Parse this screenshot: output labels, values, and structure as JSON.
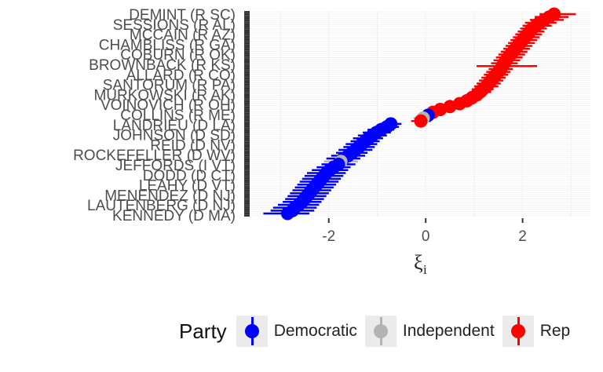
{
  "chart_data": {
    "type": "scatter",
    "title": "",
    "xlabel_main": "ξ",
    "xlabel_sub": "i",
    "ylabel": "",
    "xlim": [
      -3.6,
      3.4
    ],
    "x_ticks": [
      -2,
      0,
      2
    ],
    "x_tick_labels": [
      "-2",
      "0",
      "2"
    ],
    "grid": true,
    "legend_placement": "bottom",
    "y_labels_visible": [
      "DEMINT (R SC)",
      "SESSIONS (R AL)",
      "MCCAIN (R AZ)",
      "CHAMBLISS (R GA)",
      "COBURN (R OK)",
      "BROWNBACK (R KS)",
      "ALLARD (R CO)",
      "SANTORUM (R PA)",
      "MURKOWSKI (R AK)",
      "VOINOVICH (R OH)",
      "COLLINS (R ME)",
      "LANDRIEU (D LA)",
      "JOHNSON (D SD)",
      "REID (D NV)",
      "ROCKEFELLER (D WV)",
      "JEFFORDS (I VT)",
      "DODD (D CT)",
      "LEAHY (D VT)",
      "MENENDEZ (D NJ)",
      "LAUTENBERG (D NJ)",
      "KENNEDY (D MA)"
    ],
    "series": [
      {
        "name": "Democratic",
        "color": "#0000ff",
        "points": [
          [
            -2.85,
            -3.35,
            -2.4
          ],
          [
            -2.75,
            -3.2,
            -2.3
          ],
          [
            -2.7,
            -3.15,
            -2.25
          ],
          [
            -2.62,
            -3.05,
            -2.2
          ],
          [
            -2.55,
            -2.95,
            -2.15
          ],
          [
            -2.5,
            -2.9,
            -2.1
          ],
          [
            -2.45,
            -2.85,
            -2.05
          ],
          [
            -2.4,
            -2.8,
            -2.0
          ],
          [
            -2.35,
            -2.75,
            -1.95
          ],
          [
            -2.3,
            -2.7,
            -1.9
          ],
          [
            -2.25,
            -2.65,
            -1.85
          ],
          [
            -2.2,
            -2.6,
            -1.8
          ],
          [
            -2.15,
            -2.55,
            -1.75
          ],
          [
            -2.1,
            -2.5,
            -1.7
          ],
          [
            -2.05,
            -2.45,
            -1.65
          ],
          [
            -1.98,
            -2.35,
            -1.6
          ],
          [
            -1.9,
            -2.25,
            -1.55
          ],
          [
            -1.8,
            -2.15,
            -1.45
          ],
          [
            -1.7,
            -2.05,
            -1.35
          ],
          [
            -1.6,
            -1.95,
            -1.25
          ],
          [
            -1.52,
            -1.85,
            -1.2
          ],
          [
            -1.45,
            -1.8,
            -1.1
          ],
          [
            -1.38,
            -1.7,
            -1.05
          ],
          [
            -1.32,
            -1.65,
            -1.0
          ],
          [
            -1.25,
            -1.55,
            -0.95
          ],
          [
            -1.18,
            -1.5,
            -0.88
          ],
          [
            -1.1,
            -1.4,
            -0.8
          ],
          [
            -1.02,
            -1.3,
            -0.72
          ],
          [
            -0.92,
            -1.2,
            -0.65
          ],
          [
            -0.8,
            -1.05,
            -0.55
          ],
          [
            -0.72,
            -0.95,
            -0.5
          ],
          [
            0.05,
            -0.15,
            0.25
          ]
        ]
      },
      {
        "name": "Independent",
        "color": "#b3b3b3",
        "points": [
          [
            -1.75,
            -2.1,
            -1.4
          ],
          [
            -0.05,
            -0.25,
            0.15
          ]
        ]
      },
      {
        "name": "Rep",
        "color": "#ff0000",
        "points": [
          [
            -0.1,
            -0.3,
            0.1
          ],
          [
            0.15,
            -0.05,
            0.35
          ],
          [
            0.3,
            0.1,
            0.5
          ],
          [
            0.5,
            0.3,
            0.7
          ],
          [
            0.7,
            0.5,
            0.9
          ],
          [
            0.85,
            0.65,
            1.05
          ],
          [
            0.95,
            0.75,
            1.15
          ],
          [
            1.05,
            0.85,
            1.25
          ],
          [
            1.12,
            0.9,
            1.35
          ],
          [
            1.18,
            0.95,
            1.4
          ],
          [
            1.25,
            1.0,
            1.5
          ],
          [
            1.3,
            1.05,
            1.55
          ],
          [
            1.35,
            1.1,
            1.6
          ],
          [
            1.4,
            1.15,
            1.65
          ],
          [
            1.45,
            1.2,
            1.7
          ],
          [
            1.5,
            1.25,
            1.75
          ],
          [
            1.55,
            1.3,
            1.8
          ],
          [
            1.58,
            1.05,
            2.3
          ],
          [
            1.62,
            1.35,
            1.9
          ],
          [
            1.66,
            1.4,
            1.95
          ],
          [
            1.7,
            1.45,
            2.0
          ],
          [
            1.75,
            1.5,
            2.05
          ],
          [
            1.8,
            1.55,
            2.1
          ],
          [
            1.85,
            1.6,
            2.15
          ],
          [
            1.9,
            1.65,
            2.2
          ],
          [
            1.95,
            1.7,
            2.25
          ],
          [
            2.0,
            1.75,
            2.3
          ],
          [
            2.05,
            1.8,
            2.35
          ],
          [
            2.1,
            1.85,
            2.4
          ],
          [
            2.15,
            1.9,
            2.45
          ],
          [
            2.2,
            1.95,
            2.5
          ],
          [
            2.28,
            2.0,
            2.6
          ],
          [
            2.35,
            2.05,
            2.7
          ],
          [
            2.45,
            2.15,
            2.85
          ],
          [
            2.55,
            2.25,
            2.95
          ],
          [
            2.65,
            2.35,
            3.1
          ]
        ]
      }
    ]
  },
  "legend": {
    "title": "Party",
    "items": [
      {
        "label": "Democratic",
        "color": "#0000ff"
      },
      {
        "label": "Independent",
        "color": "#b3b3b3"
      },
      {
        "label": "Rep",
        "color": "#ff0000"
      }
    ]
  }
}
